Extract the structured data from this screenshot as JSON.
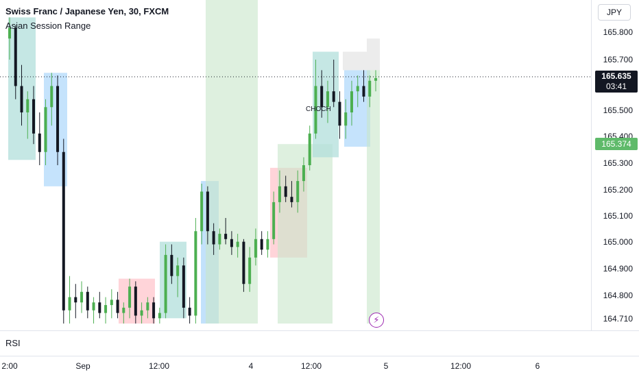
{
  "header": {
    "title": "Swiss Franc / Japanese Yen, 30, FXCM",
    "indicator": "Asian Session Range"
  },
  "price_axis": {
    "currency": "JPY",
    "labels": [
      "165.800",
      "165.700",
      "165.500",
      "165.400",
      "165.300",
      "165.200",
      "165.100",
      "165.000",
      "164.900",
      "164.800",
      "164.710"
    ],
    "current_price": "165.635",
    "countdown": "03:41",
    "level_price": "165.374"
  },
  "time_axis": {
    "labels": [
      "2:00",
      "Sep",
      "12:00",
      "4",
      "12:00",
      "5",
      "12:00",
      "6"
    ]
  },
  "rsi_pane": {
    "label": "RSI"
  },
  "annotation": {
    "choch_label": "CHOCH"
  },
  "icons": {
    "alert": "lightning-icon"
  },
  "colors": {
    "up_candle": "#4caf50",
    "down_candle": "#131722",
    "session_green": "#c8e6c9",
    "session_teal": "#b2dfdb",
    "session_blue": "#bbdefb",
    "session_red": "#ffcdd2",
    "session_brown": "#e6b8a8",
    "current_tag": "#131722",
    "level_tag": "#5fba6a",
    "alert_icon": "#9c27b0"
  },
  "chart_data": {
    "type": "candlestick",
    "symbol": "Swiss Franc / Japanese Yen, 30, FXCM",
    "current_price": 165.635,
    "marked_level": 165.374,
    "ylim": [
      164.7,
      165.86
    ],
    "candles": [
      [
        165.78,
        165.86,
        165.7,
        165.82
      ],
      [
        165.82,
        165.83,
        165.55,
        165.6
      ],
      [
        165.6,
        165.68,
        165.45,
        165.5
      ],
      [
        165.5,
        165.58,
        165.4,
        165.55
      ],
      [
        165.55,
        165.6,
        165.38,
        165.42
      ],
      [
        165.42,
        165.5,
        165.3,
        165.35
      ],
      [
        165.35,
        165.55,
        165.3,
        165.52
      ],
      [
        165.52,
        165.65,
        165.45,
        165.6
      ],
      [
        165.6,
        165.64,
        165.3,
        165.35
      ],
      [
        165.35,
        165.4,
        164.7,
        164.75
      ],
      [
        164.75,
        164.88,
        164.7,
        164.8
      ],
      [
        164.8,
        164.85,
        164.72,
        164.78
      ],
      [
        164.78,
        164.86,
        164.74,
        164.82
      ],
      [
        164.82,
        164.84,
        164.72,
        164.75
      ],
      [
        164.75,
        164.8,
        164.7,
        164.78
      ],
      [
        164.78,
        164.82,
        164.72,
        164.74
      ],
      [
        164.74,
        164.8,
        164.7,
        164.77
      ],
      [
        164.77,
        164.83,
        164.72,
        164.79
      ],
      [
        164.79,
        164.82,
        164.72,
        164.74
      ],
      [
        164.74,
        164.78,
        164.7,
        164.76
      ],
      [
        164.76,
        164.87,
        164.72,
        164.84
      ],
      [
        164.84,
        164.86,
        164.7,
        164.73
      ],
      [
        164.73,
        164.78,
        164.7,
        164.75
      ],
      [
        164.75,
        164.8,
        164.72,
        164.78
      ],
      [
        164.78,
        164.8,
        164.7,
        164.72
      ],
      [
        164.72,
        164.76,
        164.7,
        164.74
      ],
      [
        164.74,
        165.0,
        164.72,
        164.96
      ],
      [
        164.96,
        165.0,
        164.85,
        164.88
      ],
      [
        164.88,
        164.95,
        164.8,
        164.92
      ],
      [
        164.92,
        164.95,
        164.72,
        164.76
      ],
      [
        164.76,
        164.8,
        164.7,
        164.73
      ],
      [
        164.73,
        165.1,
        164.7,
        165.05
      ],
      [
        165.05,
        165.23,
        165.0,
        165.2
      ],
      [
        165.2,
        165.22,
        165.0,
        165.05
      ],
      [
        165.05,
        165.08,
        164.96,
        165.0
      ],
      [
        165.0,
        165.06,
        164.98,
        165.04
      ],
      [
        165.04,
        165.1,
        165.0,
        165.02
      ],
      [
        165.02,
        165.05,
        164.96,
        164.99
      ],
      [
        164.99,
        165.04,
        164.95,
        165.01
      ],
      [
        165.01,
        165.02,
        164.82,
        164.85
      ],
      [
        164.85,
        164.99,
        164.82,
        164.95
      ],
      [
        164.95,
        165.06,
        164.92,
        165.02
      ],
      [
        165.02,
        165.05,
        164.96,
        164.98
      ],
      [
        164.98,
        165.05,
        164.95,
        165.02
      ],
      [
        165.02,
        165.2,
        165.0,
        165.16
      ],
      [
        165.16,
        165.28,
        165.12,
        165.22
      ],
      [
        165.22,
        165.26,
        165.16,
        165.18
      ],
      [
        165.18,
        165.24,
        165.14,
        165.16
      ],
      [
        165.16,
        165.28,
        165.12,
        165.24
      ],
      [
        165.24,
        165.33,
        165.2,
        165.3
      ],
      [
        165.3,
        165.45,
        165.28,
        165.42
      ],
      [
        165.42,
        165.7,
        165.4,
        165.6
      ],
      [
        165.6,
        165.66,
        165.48,
        165.52
      ],
      [
        165.52,
        165.62,
        165.46,
        165.58
      ],
      [
        165.58,
        165.7,
        165.52,
        165.54
      ],
      [
        165.54,
        165.58,
        165.4,
        165.45
      ],
      [
        165.45,
        165.55,
        165.4,
        165.5
      ],
      [
        165.5,
        165.62,
        165.45,
        165.58
      ],
      [
        165.58,
        165.64,
        165.52,
        165.6
      ],
      [
        165.6,
        165.66,
        165.54,
        165.56
      ],
      [
        165.56,
        165.64,
        165.52,
        165.62
      ],
      [
        165.62,
        165.66,
        165.58,
        165.63
      ]
    ]
  }
}
